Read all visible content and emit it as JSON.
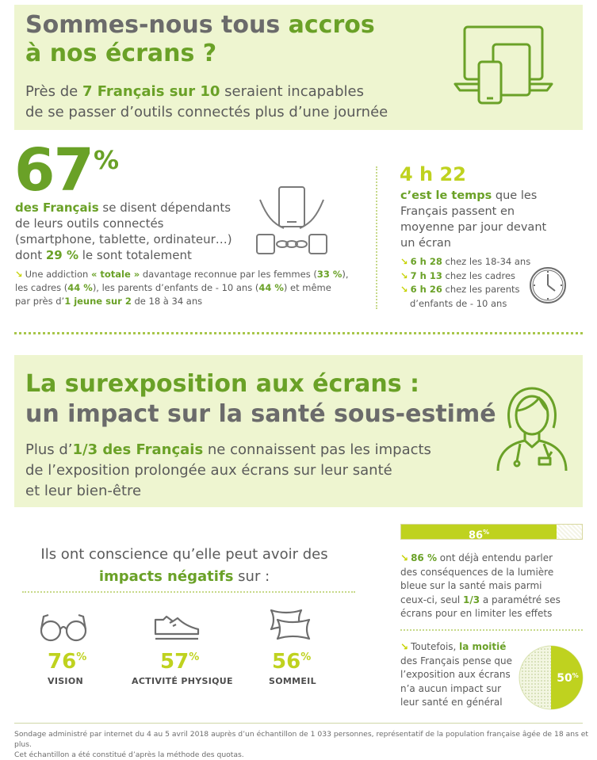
{
  "section1": {
    "title_part1": "Sommes-nous tous ",
    "title_part2": "accros",
    "title_line2": "à nos écrans ?",
    "subtitle_part1": "Près de ",
    "subtitle_highlight": "7 Français sur 10",
    "subtitle_part2": " seraient incapables",
    "subtitle_line2": "de se passer d’outils connectés plus d’une journée"
  },
  "stat67": {
    "number": "67",
    "unit": "%",
    "line1_bold": "des Français",
    "line1": " se disent dépendants",
    "line2": "de leurs outils connectés",
    "line3": "(smartphone, tablette, ordinateur…)",
    "line4_a": "dont ",
    "line4_bold": "29 %",
    "line4_b": " le sont totalement",
    "note_a": "Une addiction ",
    "note_bold1": "« totale »",
    "note_b": " davantage reconnue par les femmes (",
    "note_bold2": "33 %",
    "note_c": "),",
    "note2_a": "les cadres (",
    "note2_bold1": "44 %",
    "note2_b": "), les parents d’enfants de - 10 ans (",
    "note2_bold2": "44 %",
    "note2_c": ") et même",
    "note3_a": "par près d’",
    "note3_bold": "1 jeune sur 2",
    "note3_b": " de 18 à 34 ans"
  },
  "time": {
    "value": "4 h 22",
    "line1_bold": "c’est le temps",
    "line1": " que les",
    "line2": "Français passent en",
    "line3": "moyenne par jour devant",
    "line4": "un écran",
    "items": [
      {
        "bold": "6 h 28",
        "text": " chez les 18-34 ans"
      },
      {
        "bold": "7 h 13",
        "text": " chez les cadres"
      },
      {
        "bold": "6 h 26",
        "text": " chez les parents"
      }
    ],
    "item3_cont": "d’enfants de - 10 ans"
  },
  "section2": {
    "title_line1": "La surexposition aux écrans :",
    "title_line2": "un impact sur la santé sous-estimé",
    "sub_part1": "Plus d’",
    "sub_highlight": "1/3 des Français",
    "sub_part2": " ne connaissent pas les impacts",
    "sub_line2": "de l’exposition prolongée aux écrans sur leur santé",
    "sub_line3": "et leur bien-être"
  },
  "impacts": {
    "intro_line1": "Ils ont conscience qu’elle peut avoir des",
    "intro_bold": "impacts négatifs",
    "intro_end": " sur :",
    "items": [
      {
        "value": "76",
        "unit": "%",
        "label": "VISION",
        "icon": "glasses-icon"
      },
      {
        "value": "57",
        "unit": "%",
        "label": "ACTIVITÉ PHYSIQUE",
        "icon": "sneaker-icon"
      },
      {
        "value": "56",
        "unit": "%",
        "label": "SOMMEIL",
        "icon": "pillows-icon"
      }
    ]
  },
  "bluelight": {
    "bar_label": "86",
    "bar_unit": "%",
    "bar_fraction": 0.86,
    "text1_bold": "86 %",
    "text1": " ont déjà entendu parler",
    "text2": "des conséquences de la lumière",
    "text3": "bleue sur la santé mais parmi",
    "text4_a": "ceux-ci, seul ",
    "text4_bold": "1/3",
    "text4_b": " a paramétré ses",
    "text5": "écrans pour en limiter les effets"
  },
  "half": {
    "text1_a": "Toutefois, ",
    "text1_bold": "la moitié",
    "text2": "des Français pense que",
    "text3": "l’exposition aux écrans",
    "text4": "n’a aucun impact sur",
    "text5": "leur santé en général",
    "pie_label": "50",
    "pie_unit": "%",
    "pie_fraction": 0.5
  },
  "footer": {
    "line1": "Sondage administré par internet du 4 au 5 avril 2018 auprès d’un échantillon de 1 033 personnes, représentatif de la population française âgée de 18 ans et plus.",
    "line2": "Cet échantillon a été constitué d’après la méthode des quotas."
  },
  "colors": {
    "green": "#6aa127",
    "lime": "#bfd21f",
    "band": "#eef5d0",
    "text": "#5a5a5a"
  }
}
